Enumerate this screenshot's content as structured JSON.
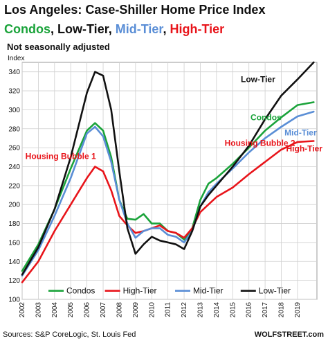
{
  "header": {
    "title": "Los Angeles: Case-Shiller Home Price Index",
    "subtitle_parts": [
      {
        "text": "Condos",
        "color": "#1aa33a",
        "sep": ","
      },
      {
        "text": "Low-Tier",
        "color": "#111111",
        "sep": ","
      },
      {
        "text": "Mid-Tier",
        "color": "#5a8ed6",
        "sep": ","
      },
      {
        "text": "High-Tier",
        "color": "#e8141a",
        "sep": ""
      }
    ],
    "note": "Not seasonally adjusted"
  },
  "footer": {
    "source": "Sources: S&P CoreLogic, St. Louis Fed",
    "brand": "WOLFSTREET.com"
  },
  "chart_data": {
    "type": "line",
    "ylabel": "Index",
    "ylim": [
      100,
      350
    ],
    "yticks": [
      100,
      120,
      140,
      160,
      180,
      200,
      220,
      240,
      260,
      280,
      300,
      320,
      340
    ],
    "xlim": [
      2002,
      2020.2
    ],
    "xticks": [
      2002,
      2003,
      2004,
      2005,
      2006,
      2007,
      2008,
      2009,
      2010,
      2011,
      2012,
      2013,
      2014,
      2015,
      2016,
      2017,
      2018,
      2019
    ],
    "grid": true,
    "legend_position": "bottom",
    "series": [
      {
        "name": "Condos",
        "color": "#1aa33a",
        "x": [
          2002,
          2003,
          2004,
          2005,
          2006,
          2006.5,
          2007,
          2007.5,
          2008,
          2008.5,
          2009,
          2009.5,
          2010,
          2010.5,
          2011,
          2011.5,
          2012,
          2012.5,
          2013,
          2013.5,
          2014,
          2015,
          2016,
          2017,
          2018,
          2019,
          2020
        ],
        "y": [
          130,
          158,
          195,
          238,
          278,
          286,
          278,
          250,
          205,
          185,
          184,
          190,
          180,
          180,
          172,
          170,
          163,
          175,
          205,
          222,
          228,
          243,
          260,
          278,
          292,
          305,
          308
        ]
      },
      {
        "name": "High-Tier",
        "color": "#e8141a",
        "x": [
          2002,
          2003,
          2004,
          2005,
          2006,
          2006.5,
          2007,
          2007.5,
          2008,
          2008.5,
          2009,
          2009.5,
          2010,
          2010.5,
          2011,
          2011.5,
          2012,
          2012.5,
          2013,
          2013.5,
          2014,
          2015,
          2016,
          2017,
          2018,
          2019,
          2020
        ],
        "y": [
          118,
          140,
          172,
          200,
          228,
          240,
          235,
          215,
          188,
          178,
          170,
          172,
          175,
          178,
          172,
          170,
          165,
          175,
          192,
          200,
          208,
          218,
          232,
          245,
          258,
          266,
          267
        ]
      },
      {
        "name": "Mid-Tier",
        "color": "#5a8ed6",
        "x": [
          2002,
          2003,
          2004,
          2005,
          2006,
          2006.5,
          2007,
          2007.5,
          2008,
          2008.5,
          2009,
          2009.5,
          2010,
          2010.5,
          2011,
          2011.5,
          2012,
          2012.5,
          2013,
          2013.5,
          2014,
          2015,
          2016,
          2017,
          2018,
          2019,
          2020
        ],
        "y": [
          125,
          152,
          188,
          228,
          275,
          282,
          272,
          245,
          205,
          180,
          165,
          172,
          175,
          175,
          168,
          166,
          160,
          172,
          198,
          213,
          222,
          238,
          255,
          270,
          282,
          293,
          298
        ]
      },
      {
        "name": "Low-Tier",
        "color": "#111111",
        "x": [
          2002,
          2003,
          2004,
          2005,
          2006,
          2006.5,
          2007,
          2007.5,
          2008,
          2008.5,
          2009,
          2009.5,
          2010,
          2010.5,
          2011,
          2011.5,
          2012,
          2012.5,
          2013,
          2013.5,
          2014,
          2015,
          2016,
          2017,
          2018,
          2019,
          2020
        ],
        "y": [
          126,
          155,
          195,
          250,
          318,
          340,
          336,
          300,
          235,
          175,
          148,
          158,
          166,
          162,
          160,
          158,
          153,
          172,
          198,
          210,
          220,
          240,
          262,
          290,
          315,
          332,
          350
        ]
      }
    ],
    "annotations": [
      {
        "text": "Housing Bubble 1",
        "color": "#e8141a",
        "x": 2002.2,
        "y": 248
      },
      {
        "text": "Housing Bubble 2",
        "color": "#e8141a",
        "x": 2014.5,
        "y": 262
      },
      {
        "text": "Low-Tier",
        "color": "#111111",
        "x": 2015.5,
        "y": 329
      },
      {
        "text": "Condos",
        "color": "#1aa33a",
        "x": 2016.1,
        "y": 289
      },
      {
        "text": "Mid-Tier",
        "color": "#5a8ed6",
        "x": 2018.2,
        "y": 273
      },
      {
        "text": "High-Tier",
        "color": "#e8141a",
        "x": 2018.3,
        "y": 256
      }
    ]
  }
}
